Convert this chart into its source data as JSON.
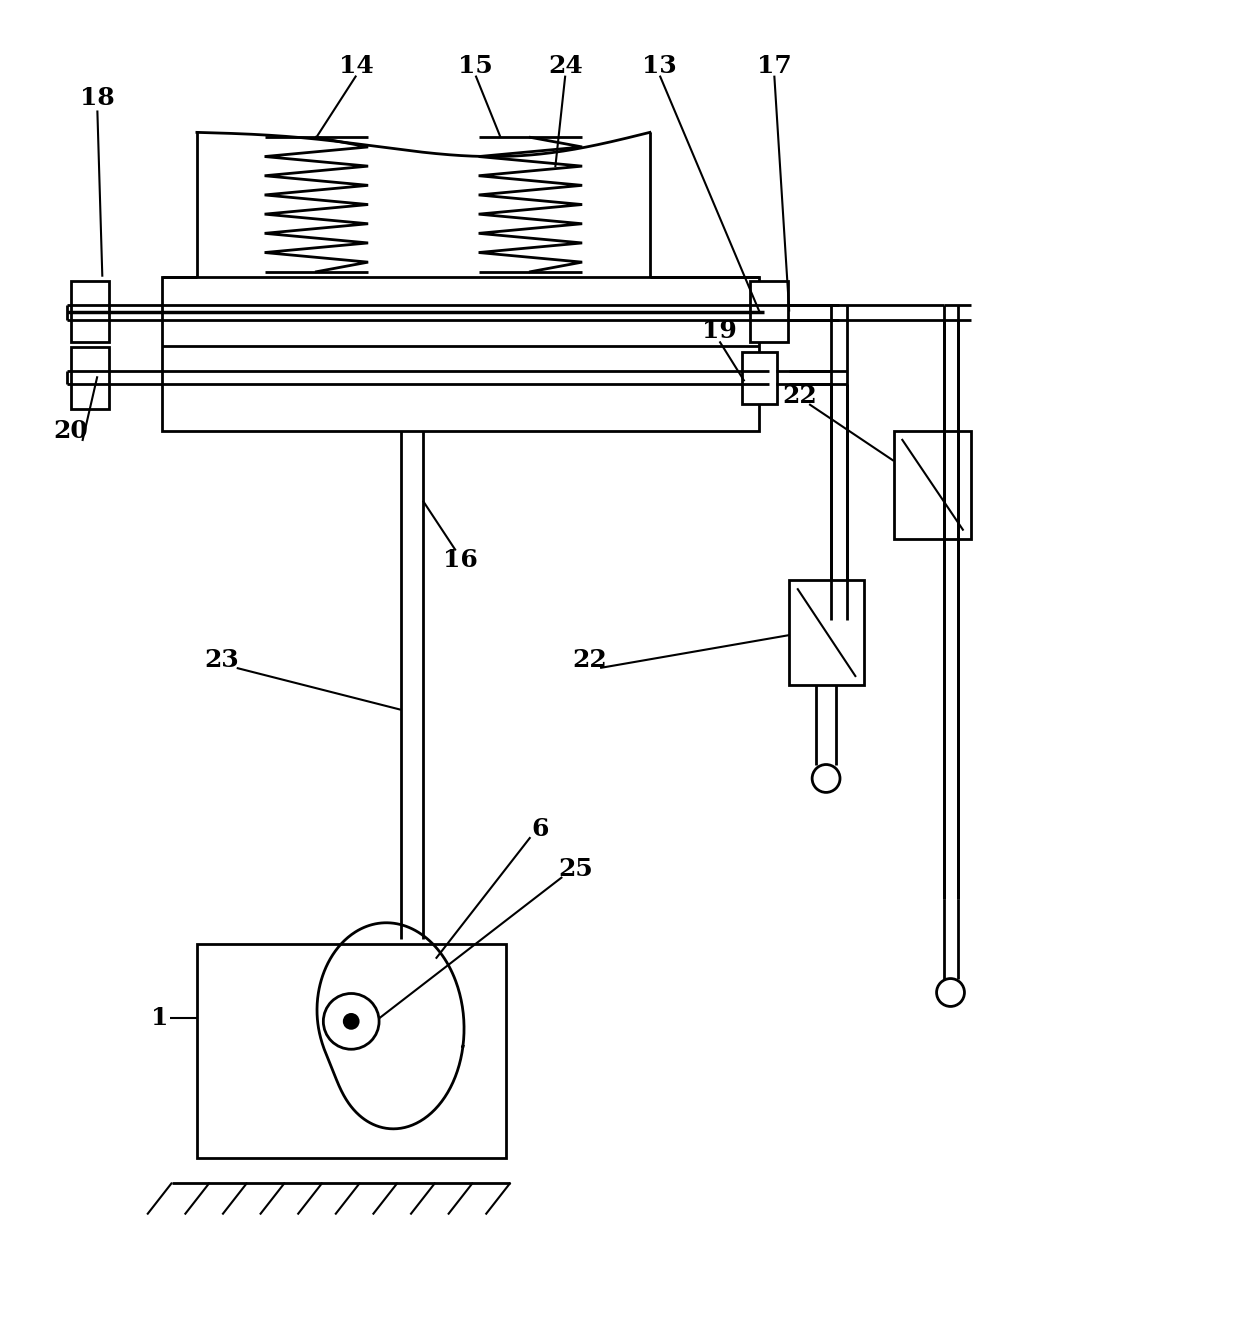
{
  "bg_color": "#ffffff",
  "lc": "#000000",
  "lw": 2.0,
  "tlw": 1.5
}
